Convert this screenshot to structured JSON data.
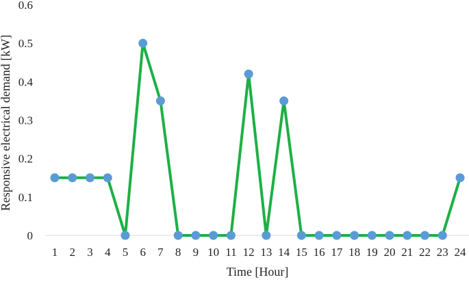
{
  "chart_data": {
    "type": "line",
    "title": "",
    "xlabel": "Time [Hour]",
    "ylabel": "Responsive electrical demand [kW]",
    "x": [
      1,
      2,
      3,
      4,
      5,
      6,
      7,
      8,
      9,
      10,
      11,
      12,
      13,
      14,
      15,
      16,
      17,
      18,
      19,
      20,
      21,
      22,
      23,
      24
    ],
    "x_tick_labels": [
      "1",
      "2",
      "3",
      "4",
      "5",
      "6",
      "7",
      "8",
      "9",
      "10",
      "11",
      "12",
      "13",
      "14",
      "15",
      "16",
      "17",
      "18",
      "19",
      "20",
      "21",
      "22",
      "23",
      "24"
    ],
    "series": [
      {
        "values": [
          0.15,
          0.15,
          0.15,
          0.15,
          0,
          0.5,
          0.35,
          0,
          0,
          0,
          0,
          0.42,
          0,
          0.35,
          0,
          0,
          0,
          0,
          0,
          0,
          0,
          0,
          0,
          0.15
        ]
      }
    ],
    "y_ticks": [
      0,
      0.1,
      0.2,
      0.3,
      0.4,
      0.5,
      0.6
    ],
    "y_tick_labels": [
      "0",
      "0.1",
      "0.2",
      "0.3",
      "0.4",
      "0.5",
      "0.6"
    ],
    "ylim": [
      0,
      0.6
    ],
    "grid": false,
    "legend": "none",
    "colors": {
      "line": "#1DB045",
      "marker": "#5B9BD5",
      "baseline": "#D9D9D9"
    }
  }
}
